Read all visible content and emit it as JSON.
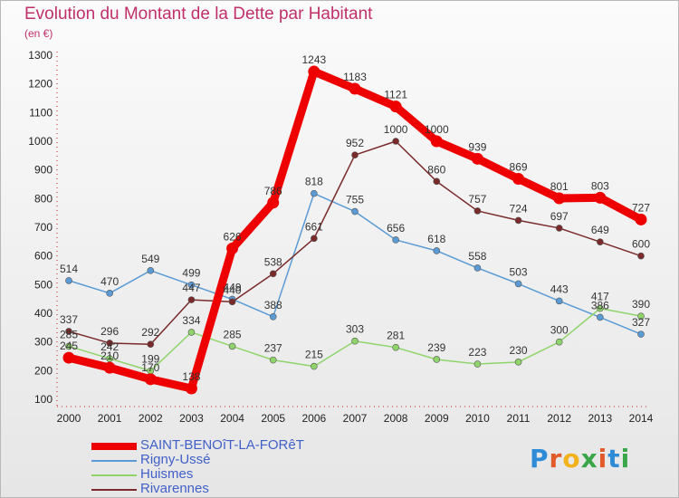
{
  "title": "Evolution du Montant de la Dette par Habitant",
  "subtitle": "(en €)",
  "logo": {
    "text": "Proxiti",
    "colors": [
      "#2e8bd8",
      "#e25a2a",
      "#f2b21b",
      "#3aa64a",
      "#e25a2a",
      "#2e8bd8",
      "#3aa64a"
    ]
  },
  "chart_data": {
    "type": "line",
    "x": [
      2000,
      2001,
      2002,
      2003,
      2004,
      2005,
      2006,
      2007,
      2008,
      2009,
      2010,
      2011,
      2012,
      2013,
      2014
    ],
    "ylim": [
      100,
      1300
    ],
    "yticks": [
      100,
      200,
      300,
      400,
      500,
      600,
      700,
      800,
      900,
      1000,
      1100,
      1200,
      1300
    ],
    "grid": false,
    "legend_position": "bottom-left",
    "series": [
      {
        "name": "SAINT-BENOîT-LA-FORêT",
        "color": "#ee0000",
        "thick": true,
        "values": [
          245,
          210,
          170,
          138,
          626,
          786,
          1243,
          1183,
          1121,
          1000,
          939,
          869,
          801,
          803,
          727
        ],
        "labels": [
          "245",
          "210",
          "170",
          "138",
          "626",
          "786",
          "1243",
          "1183",
          "1121",
          "1000",
          "939",
          "869",
          "801",
          "803",
          "727"
        ]
      },
      {
        "name": "Rigny-Ussé",
        "color": "#5a9bd5",
        "thick": false,
        "values": [
          514,
          470,
          549,
          499,
          449,
          388,
          818,
          755,
          656,
          618,
          558,
          503,
          443,
          386,
          327
        ],
        "labels": [
          "514",
          "470",
          "549",
          "499",
          "449",
          "388",
          "818",
          "755",
          "656",
          "618",
          "558",
          "503",
          "443",
          "386",
          "327"
        ]
      },
      {
        "name": "Huismes",
        "color": "#8fd46a",
        "thick": false,
        "values": [
          285,
          242,
          199,
          334,
          285,
          237,
          215,
          303,
          281,
          239,
          223,
          230,
          300,
          417,
          390
        ],
        "labels": [
          "285",
          "242",
          "199",
          "334",
          "285",
          "237",
          "215",
          "303",
          "281",
          "239",
          "223",
          "230",
          "300",
          "417",
          "390"
        ]
      },
      {
        "name": "Rivarennes",
        "color": "#7a2a2a",
        "thick": false,
        "values": [
          337,
          296,
          292,
          447,
          440,
          538,
          661,
          952,
          1000,
          860,
          757,
          724,
          697,
          649,
          600
        ],
        "labels": [
          "337",
          "296",
          "292",
          "447",
          "440",
          "538",
          "661",
          "952",
          "1000",
          "860",
          "757",
          "724",
          "697",
          "649",
          "600"
        ]
      }
    ]
  }
}
